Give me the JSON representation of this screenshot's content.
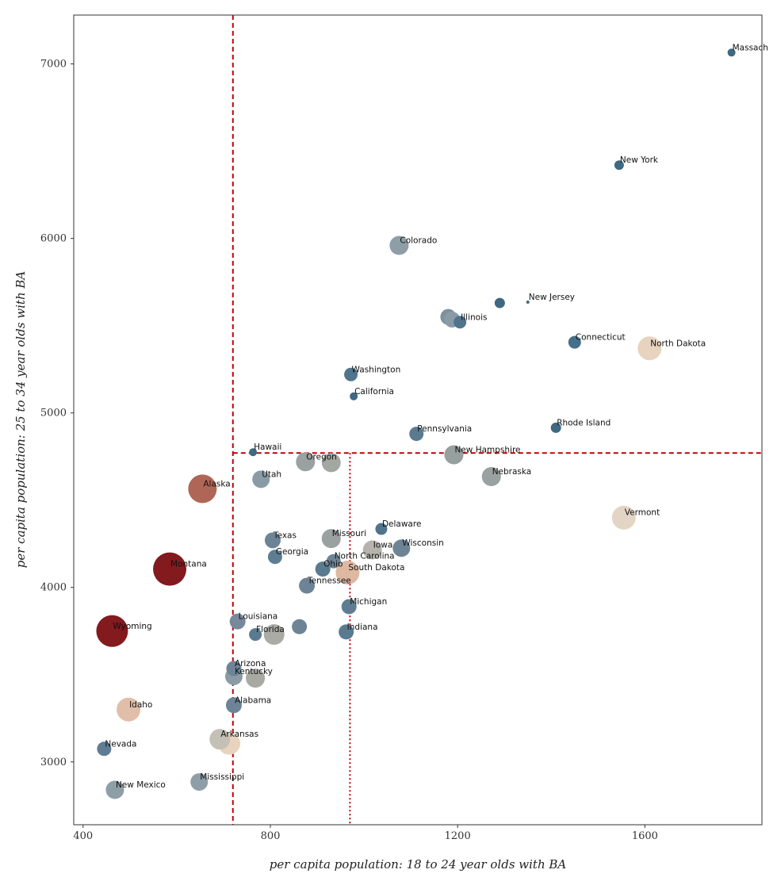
{
  "chart_data": {
    "type": "scatter",
    "xlabel": "per capita population: 18 to 24 year olds with BA",
    "ylabel": "per capita population: 25 to 34 year olds with BA",
    "xlim": [
      380,
      1850
    ],
    "ylim": [
      2640,
      7280
    ],
    "xticks": [
      400,
      800,
      1200,
      1600
    ],
    "yticks": [
      3000,
      4000,
      5000,
      6000,
      7000
    ],
    "grid": false,
    "reference_lines": [
      {
        "orientation": "vertical",
        "x": 720,
        "style": "dashed",
        "color": "#c0000a"
      },
      {
        "orientation": "vertical",
        "x": 970,
        "style": "dotted",
        "color": "#c0000a",
        "y_range": [
          2640,
          4770
        ]
      },
      {
        "orientation": "horizontal",
        "y": 4770,
        "style": "dashed",
        "color": "#c0000a",
        "x_range": [
          720,
          1850
        ]
      }
    ],
    "points": [
      {
        "label": "Massach",
        "x": 1785,
        "y": 7065,
        "size": 5,
        "color": "#3f6882"
      },
      {
        "label": "New York",
        "x": 1545,
        "y": 6420,
        "size": 6,
        "color": "#3f6882"
      },
      {
        "label": "Colorado",
        "x": 1075,
        "y": 5960,
        "size": 12,
        "color": "#8e9ea6"
      },
      {
        "label": "New Jersey",
        "x": 1350,
        "y": 5635,
        "size": 2,
        "color": "#3f6882"
      },
      {
        "label": "",
        "x": 1290,
        "y": 5630,
        "size": 6.5,
        "color": "#3f6882"
      },
      {
        "label": "Illinois",
        "x": 1205,
        "y": 5520,
        "size": 8,
        "color": "#4f748c"
      },
      {
        "label": "",
        "x": 1180,
        "y": 5550,
        "size": 10,
        "color": "#7d919e"
      },
      {
        "label": "",
        "x": 1188,
        "y": 5535,
        "size": 10,
        "color": "#8a9ba5"
      },
      {
        "label": "Connecticut",
        "x": 1450,
        "y": 5405,
        "size": 8,
        "color": "#46708a"
      },
      {
        "label": "North Dakota",
        "x": 1610,
        "y": 5370,
        "size": 15,
        "color": "#e8d3be"
      },
      {
        "label": "Washington",
        "x": 972,
        "y": 5220,
        "size": 8.5,
        "color": "#4f748c"
      },
      {
        "label": "California",
        "x": 978,
        "y": 5095,
        "size": 5,
        "color": "#3f6882"
      },
      {
        "label": "Rhode Island",
        "x": 1410,
        "y": 4915,
        "size": 6.5,
        "color": "#3f6882"
      },
      {
        "label": "Pennsylvania",
        "x": 1112,
        "y": 4880,
        "size": 9,
        "color": "#5a7a90"
      },
      {
        "label": "Hawaii",
        "x": 763,
        "y": 4775,
        "size": 5,
        "color": "#3f6882"
      },
      {
        "label": "New Hampshire",
        "x": 1192,
        "y": 4760,
        "size": 12,
        "color": "#979f9f"
      },
      {
        "label": "Oregon",
        "x": 875,
        "y": 4720,
        "size": 12,
        "color": "#9aa1a1"
      },
      {
        "label": "",
        "x": 930,
        "y": 4715,
        "size": 12,
        "color": "#a3a7a2"
      },
      {
        "label": "Nebraska",
        "x": 1272,
        "y": 4635,
        "size": 12,
        "color": "#9aa1a1"
      },
      {
        "label": "Utah",
        "x": 780,
        "y": 4620,
        "size": 11,
        "color": "#8a9ba5"
      },
      {
        "label": "Alaska",
        "x": 655,
        "y": 4565,
        "size": 18,
        "color": "#b06656"
      },
      {
        "label": "Vermont",
        "x": 1555,
        "y": 4400,
        "size": 15,
        "color": "#e3d5c4"
      },
      {
        "label": "Delaware",
        "x": 1037,
        "y": 4335,
        "size": 7.5,
        "color": "#4f748c"
      },
      {
        "label": "Texas",
        "x": 805,
        "y": 4270,
        "size": 10,
        "color": "#6d8496"
      },
      {
        "label": "Missouri",
        "x": 930,
        "y": 4280,
        "size": 12,
        "color": "#9aa1a1"
      },
      {
        "label": "Iowa",
        "x": 1018,
        "y": 4215,
        "size": 12,
        "color": "#b5b3ab"
      },
      {
        "label": "Wisconsin",
        "x": 1080,
        "y": 4225,
        "size": 11,
        "color": "#6d8496"
      },
      {
        "label": "Georgia",
        "x": 810,
        "y": 4175,
        "size": 9,
        "color": "#5f7d92"
      },
      {
        "label": "North Carolina",
        "x": 935,
        "y": 4150,
        "size": 9,
        "color": "#6d8496"
      },
      {
        "label": "Ohio",
        "x": 912,
        "y": 4105,
        "size": 9.5,
        "color": "#5a7a90"
      },
      {
        "label": "Montana",
        "x": 585,
        "y": 4105,
        "size": 21,
        "color": "#821a1e"
      },
      {
        "label": "South Dakota",
        "x": 965,
        "y": 4085,
        "size": 15,
        "color": "#deb8a1"
      },
      {
        "label": "Tennessee",
        "x": 878,
        "y": 4010,
        "size": 10,
        "color": "#6d8496"
      },
      {
        "label": "Michigan",
        "x": 968,
        "y": 3890,
        "size": 9.5,
        "color": "#5f7d92"
      },
      {
        "label": "Louisiana",
        "x": 730,
        "y": 3805,
        "size": 10,
        "color": "#77899a"
      },
      {
        "label": "",
        "x": 862,
        "y": 3775,
        "size": 9.5,
        "color": "#6d8496"
      },
      {
        "label": "Wyoming",
        "x": 462,
        "y": 3750,
        "size": 20,
        "color": "#821a1e"
      },
      {
        "label": "Indiana",
        "x": 962,
        "y": 3745,
        "size": 9.5,
        "color": "#5a7a90"
      },
      {
        "label": "Florida",
        "x": 768,
        "y": 3730,
        "size": 8,
        "color": "#5a7a90"
      },
      {
        "label": "",
        "x": 808,
        "y": 3730,
        "size": 13,
        "color": "#aaaba4"
      },
      {
        "label": "Arizona",
        "x": 722,
        "y": 3535,
        "size": 9.5,
        "color": "#6d8496"
      },
      {
        "label": "Kentucky",
        "x": 722,
        "y": 3490,
        "size": 11,
        "color": "#8a9ba5"
      },
      {
        "label": "",
        "x": 768,
        "y": 3480,
        "size": 12,
        "color": "#a8a9a3"
      },
      {
        "label": "Alabama",
        "x": 722,
        "y": 3325,
        "size": 10,
        "color": "#6d8496"
      },
      {
        "label": "Idaho",
        "x": 497,
        "y": 3300,
        "size": 15,
        "color": "#e0bea8"
      },
      {
        "label": "Arkansas",
        "x": 692,
        "y": 3130,
        "size": 13,
        "color": "#c4c0b5"
      },
      {
        "label": "",
        "x": 712,
        "y": 3105,
        "size": 14,
        "color": "#e8d3be"
      },
      {
        "label": "Nevada",
        "x": 445,
        "y": 3075,
        "size": 9,
        "color": "#5f7d92"
      },
      {
        "label": "Mississippi",
        "x": 648,
        "y": 2885,
        "size": 11,
        "color": "#8e9ea6"
      },
      {
        "label": "New Mexico",
        "x": 468,
        "y": 2840,
        "size": 11.5,
        "color": "#8e9ea6"
      }
    ]
  }
}
